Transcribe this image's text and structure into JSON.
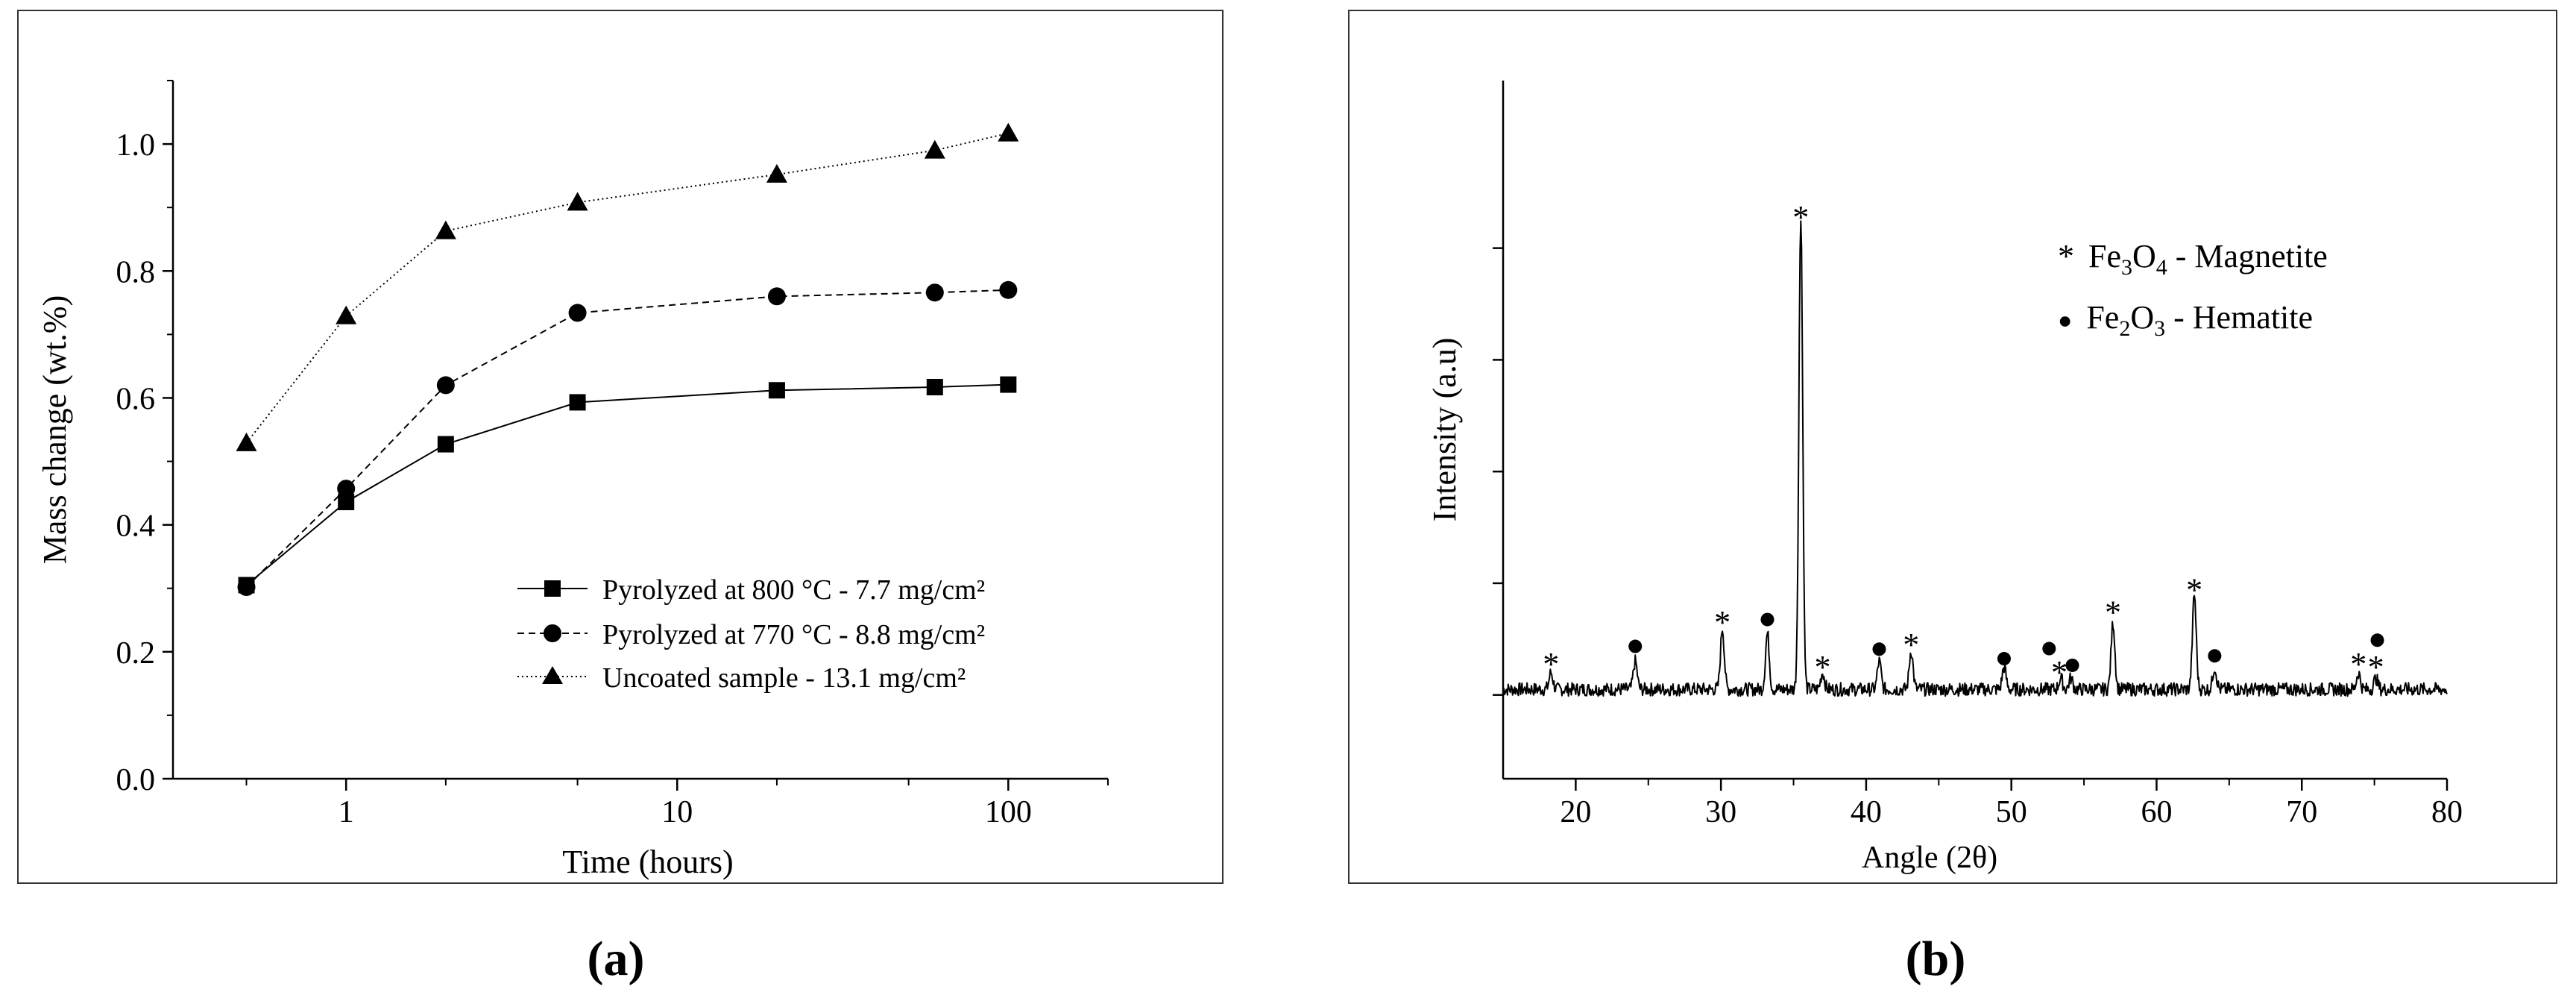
{
  "chart_data": [
    {
      "panel": "(a)",
      "type": "line",
      "xscale": "log",
      "xlabel": "Time (hours)",
      "ylabel": "Mass change (wt.%)",
      "xlim": [
        0.3,
        200
      ],
      "ylim": [
        0,
        1.1
      ],
      "xtick_values": [
        1,
        10,
        100
      ],
      "xtick_labels": [
        "1",
        "10",
        "100"
      ],
      "ytick_values": [
        0,
        0.2,
        0.4,
        0.6,
        0.8,
        1.0
      ],
      "ytick_labels": [
        "0.0",
        "0.2",
        "0.4",
        "0.6",
        "0.8",
        "1.0"
      ],
      "x": [
        0.5,
        1,
        2,
        5,
        20,
        60,
        100
      ],
      "legend_position": "bottom-right",
      "series": [
        {
          "name": "Pyrolyzed at 800 °C - 7.7 mg/cm²",
          "marker": "square",
          "line": "solid",
          "values": [
            0.305,
            0.436,
            0.527,
            0.593,
            0.612,
            0.617,
            0.621
          ]
        },
        {
          "name": "Pyrolyzed at 770 °C - 8.8 mg/cm²",
          "marker": "circle",
          "line": "dashed",
          "values": [
            0.302,
            0.457,
            0.62,
            0.734,
            0.76,
            0.766,
            0.77
          ]
        },
        {
          "name": "Uncoated sample - 13.1 mg/cm²",
          "marker": "triangle",
          "line": "dotted",
          "values": [
            0.529,
            0.729,
            0.863,
            0.908,
            0.952,
            0.99,
            1.017
          ]
        }
      ]
    },
    {
      "panel": "(b)",
      "type": "line",
      "xlabel": "Angle (2θ)",
      "ylabel": "Intensity (a.u)",
      "xlim": [
        15,
        80
      ],
      "ylim": [
        -0.15,
        1.1
      ],
      "xtick_values": [
        20,
        30,
        40,
        50,
        60,
        70,
        80
      ],
      "xtick_labels": [
        "20",
        "30",
        "40",
        "50",
        "60",
        "70",
        "80"
      ],
      "ytick_values": [
        0,
        0.2,
        0.4,
        0.6,
        0.8
      ],
      "baseline": 0.01,
      "noise_amplitude": 0.012,
      "peaks": [
        {
          "angle": 18.3,
          "height": 0.03,
          "phase": "magnetite"
        },
        {
          "angle": 24.1,
          "height": 0.05,
          "phase": "hematite"
        },
        {
          "angle": 30.1,
          "height": 0.11,
          "phase": "magnetite"
        },
        {
          "angle": 33.2,
          "height": 0.1,
          "phase": "hematite"
        },
        {
          "angle": 35.5,
          "height": 0.85,
          "phase": "magnetite"
        },
        {
          "angle": 37.0,
          "height": 0.03,
          "phase": "magnetite"
        },
        {
          "angle": 40.9,
          "height": 0.05,
          "phase": "hematite"
        },
        {
          "angle": 43.1,
          "height": 0.07,
          "phase": "magnetite"
        },
        {
          "angle": 49.5,
          "height": 0.04,
          "phase": "hematite"
        },
        {
          "angle": 53.4,
          "height": 0.02,
          "phase": "magnetite"
        },
        {
          "angle": 54.1,
          "height": 0.02,
          "phase": "hematite"
        },
        {
          "angle": 57.0,
          "height": 0.12,
          "phase": "magnetite"
        },
        {
          "angle": 62.6,
          "height": 0.17,
          "phase": "magnetite"
        },
        {
          "angle": 64.0,
          "height": 0.04,
          "phase": "hematite"
        },
        {
          "angle": 73.9,
          "height": 0.03,
          "phase": "magnetite"
        },
        {
          "angle": 75.1,
          "height": 0.02,
          "phase": "magnetite"
        }
      ],
      "markers": [
        {
          "angle": 18.3,
          "level": 0.065,
          "phase": "magnetite"
        },
        {
          "angle": 24.1,
          "level": 0.087,
          "phase": "hematite"
        },
        {
          "angle": 30.1,
          "level": 0.14,
          "phase": "magnetite"
        },
        {
          "angle": 33.2,
          "level": 0.135,
          "phase": "hematite"
        },
        {
          "angle": 35.5,
          "level": 0.865,
          "phase": "magnetite"
        },
        {
          "angle": 37.0,
          "level": 0.06,
          "phase": "magnetite"
        },
        {
          "angle": 40.9,
          "level": 0.082,
          "phase": "hematite"
        },
        {
          "angle": 43.1,
          "level": 0.1,
          "phase": "magnetite"
        },
        {
          "angle": 49.5,
          "level": 0.065,
          "phase": "hematite"
        },
        {
          "angle": 52.6,
          "level": 0.083,
          "phase": "hematite"
        },
        {
          "angle": 53.3,
          "level": 0.05,
          "phase": "magnetite"
        },
        {
          "angle": 54.2,
          "level": 0.053,
          "phase": "hematite"
        },
        {
          "angle": 57.0,
          "level": 0.158,
          "phase": "magnetite"
        },
        {
          "angle": 62.6,
          "level": 0.198,
          "phase": "magnetite"
        },
        {
          "angle": 64.0,
          "level": 0.07,
          "phase": "hematite"
        },
        {
          "angle": 73.9,
          "level": 0.065,
          "phase": "magnetite"
        },
        {
          "angle": 75.1,
          "level": 0.06,
          "phase": "magnetite"
        },
        {
          "angle": 75.2,
          "level": 0.098,
          "phase": "hematite"
        }
      ],
      "legend": [
        {
          "symbol": "*",
          "formula_parts": [
            "Fe",
            "3",
            "O",
            "4"
          ],
          "name": " - Magnetite"
        },
        {
          "symbol": "●",
          "formula_parts": [
            "Fe",
            "2",
            "O",
            "3"
          ],
          "name": " - Hematite"
        }
      ]
    }
  ],
  "captions": {
    "a": "(a)",
    "b": "(b)"
  }
}
